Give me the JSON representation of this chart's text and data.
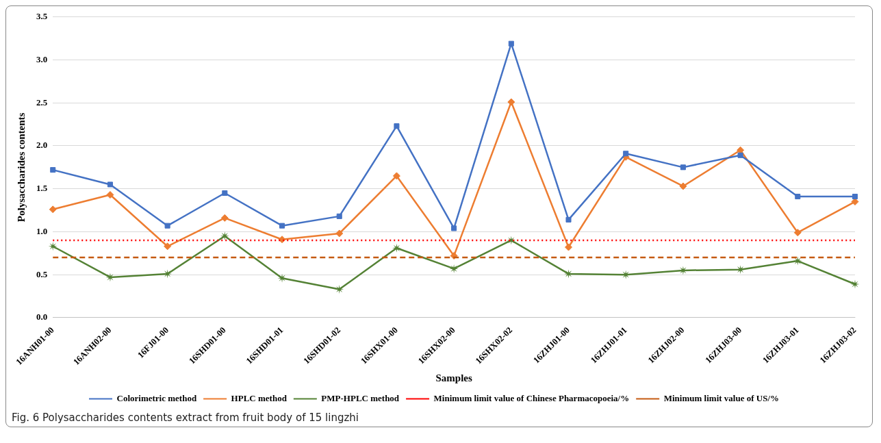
{
  "chart_data": {
    "type": "line",
    "xlabel": "Samples",
    "ylabel": "Polysaccharides contents",
    "categories": [
      "16ANH01-00",
      "16ANH02-00",
      "16FJ01-00",
      "16SHD01-00",
      "16SHD01-01",
      "16SHD01-02",
      "16SHX01-00",
      "16SHX02-00",
      "16SHX02-02",
      "16ZHJ01-00",
      "16ZHJ01-01",
      "16ZHJ02-00",
      "16ZHJ03-00",
      "16ZHJ03-01",
      "16ZHJ03-02"
    ],
    "series": [
      {
        "name": "Colorimetric method",
        "color": "#4472c4",
        "marker": "square",
        "values": [
          1.72,
          1.55,
          1.07,
          1.45,
          1.07,
          1.18,
          2.23,
          1.04,
          3.19,
          1.14,
          1.91,
          1.75,
          1.89,
          1.41,
          1.41
        ]
      },
      {
        "name": "HPLC method",
        "color": "#ed7d31",
        "marker": "diamond",
        "values": [
          1.26,
          1.43,
          0.83,
          1.16,
          0.91,
          0.98,
          1.65,
          0.72,
          2.51,
          0.82,
          1.87,
          1.53,
          1.95,
          0.99,
          1.35
        ]
      },
      {
        "name": "PMP-HPLC method",
        "color": "#548235",
        "marker": "star",
        "values": [
          0.83,
          0.47,
          0.51,
          0.95,
          0.46,
          0.33,
          0.81,
          0.57,
          0.9,
          0.51,
          0.5,
          0.55,
          0.56,
          0.66,
          0.39
        ]
      }
    ],
    "ref_lines": [
      {
        "axis": "y",
        "value": 0.9,
        "label": "Minimum limit value of Chinese Pharmacopoeia/%",
        "color": "#ff0000",
        "line_style": "dotted"
      },
      {
        "axis": "y",
        "value": 0.7,
        "label": "Minimum limit value of US/%",
        "color": "#c55a11",
        "line_style": "dashed"
      }
    ],
    "ylim": [
      0,
      3.5
    ],
    "yticks": [
      {
        "value": 0,
        "label": "0.0"
      },
      {
        "value": 0.5,
        "label": "0.5"
      },
      {
        "value": 1,
        "label": "1.0"
      },
      {
        "value": 1.5,
        "label": "1.5"
      },
      {
        "value": 2,
        "label": "2.0"
      },
      {
        "value": 2.5,
        "label": "2.5"
      },
      {
        "value": 3,
        "label": "3.0"
      },
      {
        "value": 3.5,
        "label": "3.5"
      }
    ],
    "grid": "y",
    "legend": "bottom",
    "annotations": [
      "Fig. 6 Polysaccharides contents extract from fruit body of 15 lingzhi"
    ]
  }
}
